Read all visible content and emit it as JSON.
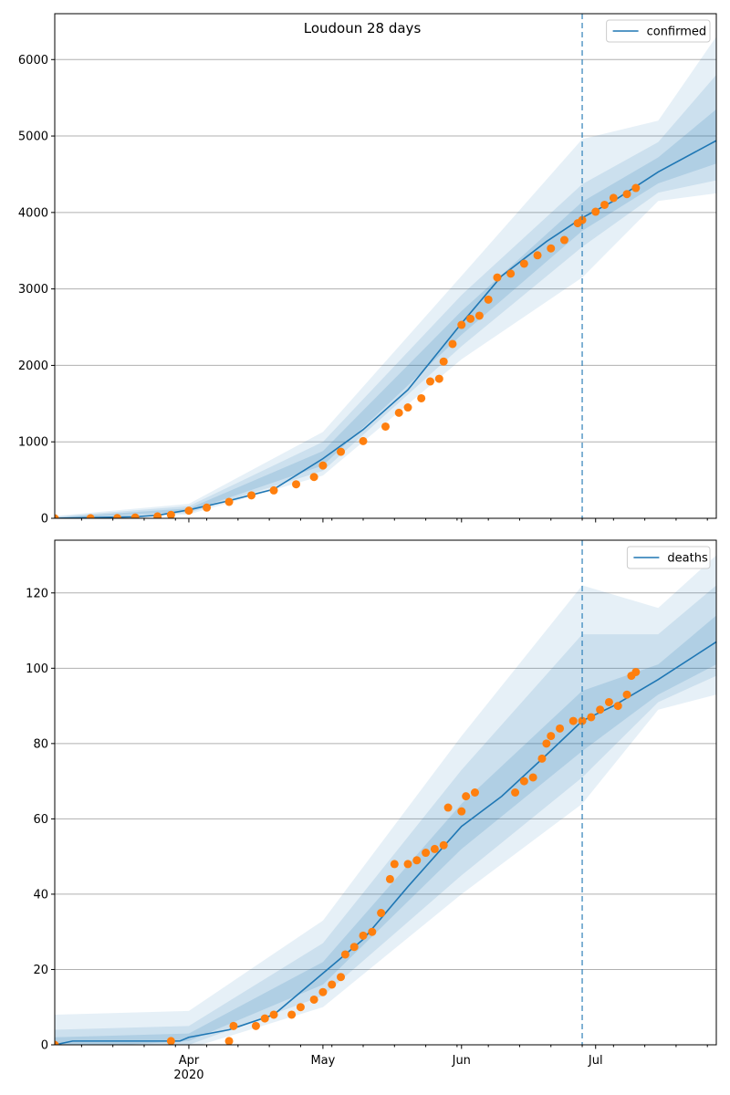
{
  "figure": {
    "title": "Loudoun 28 days",
    "colors": {
      "model_line": "#1f77b4",
      "observed_points": "#ff7f0e",
      "band": "#1f77b4",
      "grid": "#b0b0b0",
      "cutoff_line": "#1f77b4"
    }
  },
  "chart_data": [
    {
      "type": "line",
      "name": "confirmed-panel",
      "x_axis": {
        "type": "date",
        "range": [
          "2020-03-02",
          "2020-07-28"
        ],
        "tick_labels": [
          {
            "date": "2020-04-01",
            "label": "Apr",
            "sublabel": "2020"
          },
          {
            "date": "2020-05-01",
            "label": "May",
            "sublabel": ""
          },
          {
            "date": "2020-06-01",
            "label": "Jun",
            "sublabel": ""
          },
          {
            "date": "2020-07-01",
            "label": "Jul",
            "sublabel": ""
          }
        ],
        "tick_labels_visible": false
      },
      "y_axis": {
        "range": [
          0,
          6600
        ],
        "ticks": [
          0,
          1000,
          2000,
          3000,
          4000,
          5000,
          6000
        ],
        "tick_labels": [
          "0",
          "1000",
          "2000",
          "3000",
          "4000",
          "5000",
          "6000"
        ]
      },
      "grid": "horizontal",
      "legend": {
        "position": "top-right",
        "entries": [
          "confirmed"
        ]
      },
      "cutoff_date": "2020-06-28",
      "model": {
        "name": "confirmed",
        "points": [
          [
            "2020-03-02",
            0
          ],
          [
            "2020-03-20",
            20
          ],
          [
            "2020-03-25",
            40
          ],
          [
            "2020-04-01",
            110
          ],
          [
            "2020-04-10",
            230
          ],
          [
            "2020-04-20",
            380
          ],
          [
            "2020-05-01",
            780
          ],
          [
            "2020-05-10",
            1160
          ],
          [
            "2020-05-20",
            1680
          ],
          [
            "2020-06-01",
            2550
          ],
          [
            "2020-06-10",
            3170
          ],
          [
            "2020-06-20",
            3620
          ],
          [
            "2020-06-28",
            3930
          ],
          [
            "2020-07-05",
            4150
          ],
          [
            "2020-07-15",
            4530
          ],
          [
            "2020-07-28",
            4940
          ]
        ],
        "bands": [
          {
            "level": "inner",
            "points": [
              [
                "2020-03-02",
                -10,
                10
              ],
              [
                "2020-04-01",
                90,
                130
              ],
              [
                "2020-05-01",
                690,
                880
              ],
              [
                "2020-06-01",
                2400,
                2710
              ],
              [
                "2020-06-28",
                3760,
                4140
              ],
              [
                "2020-07-15",
                4380,
                4720
              ],
              [
                "2020-07-28",
                4640,
                5350
              ]
            ]
          },
          {
            "level": "middle",
            "points": [
              [
                "2020-03-02",
                -20,
                20
              ],
              [
                "2020-04-01",
                70,
                160
              ],
              [
                "2020-05-01",
                620,
                1000
              ],
              [
                "2020-06-01",
                2250,
                2920
              ],
              [
                "2020-06-28",
                3550,
                4370
              ],
              [
                "2020-07-15",
                4260,
                4920
              ],
              [
                "2020-07-28",
                4420,
                5800
              ]
            ]
          },
          {
            "level": "outer",
            "points": [
              [
                "2020-03-02",
                -30,
                30
              ],
              [
                "2020-04-01",
                50,
                190
              ],
              [
                "2020-05-01",
                560,
                1130
              ],
              [
                "2020-06-01",
                2080,
                3170
              ],
              [
                "2020-06-28",
                3150,
                4960
              ],
              [
                "2020-07-15",
                4150,
                5200
              ],
              [
                "2020-07-28",
                4250,
                6300
              ]
            ]
          }
        ]
      },
      "observed": {
        "name": "confirmed",
        "points": [
          [
            "2020-03-02",
            0
          ],
          [
            "2020-03-10",
            1
          ],
          [
            "2020-03-16",
            3
          ],
          [
            "2020-03-20",
            10
          ],
          [
            "2020-03-25",
            25
          ],
          [
            "2020-03-28",
            45
          ],
          [
            "2020-04-01",
            100
          ],
          [
            "2020-04-05",
            140
          ],
          [
            "2020-04-10",
            215
          ],
          [
            "2020-04-15",
            300
          ],
          [
            "2020-04-20",
            365
          ],
          [
            "2020-04-25",
            445
          ],
          [
            "2020-04-29",
            540
          ],
          [
            "2020-05-01",
            690
          ],
          [
            "2020-05-05",
            870
          ],
          [
            "2020-05-10",
            1010
          ],
          [
            "2020-05-15",
            1200
          ],
          [
            "2020-05-18",
            1380
          ],
          [
            "2020-05-20",
            1450
          ],
          [
            "2020-05-23",
            1570
          ],
          [
            "2020-05-25",
            1790
          ],
          [
            "2020-05-27",
            1825
          ],
          [
            "2020-05-28",
            2050
          ],
          [
            "2020-05-30",
            2280
          ],
          [
            "2020-06-01",
            2530
          ],
          [
            "2020-06-03",
            2610
          ],
          [
            "2020-06-05",
            2650
          ],
          [
            "2020-06-07",
            2860
          ],
          [
            "2020-06-09",
            3150
          ],
          [
            "2020-06-12",
            3200
          ],
          [
            "2020-06-15",
            3330
          ],
          [
            "2020-06-18",
            3440
          ],
          [
            "2020-06-21",
            3530
          ],
          [
            "2020-06-24",
            3640
          ],
          [
            "2020-06-27",
            3860
          ],
          [
            "2020-06-28",
            3900
          ],
          [
            "2020-07-01",
            4010
          ],
          [
            "2020-07-03",
            4100
          ],
          [
            "2020-07-05",
            4190
          ],
          [
            "2020-07-08",
            4240
          ],
          [
            "2020-07-10",
            4320
          ]
        ]
      }
    },
    {
      "type": "line",
      "name": "deaths-panel",
      "x_axis": {
        "type": "date",
        "range": [
          "2020-03-02",
          "2020-07-28"
        ],
        "tick_labels": [
          {
            "date": "2020-04-01",
            "label": "Apr",
            "sublabel": "2020"
          },
          {
            "date": "2020-05-01",
            "label": "May",
            "sublabel": ""
          },
          {
            "date": "2020-06-01",
            "label": "Jun",
            "sublabel": ""
          },
          {
            "date": "2020-07-01",
            "label": "Jul",
            "sublabel": ""
          }
        ],
        "tick_labels_visible": true
      },
      "y_axis": {
        "range": [
          0,
          134
        ],
        "ticks": [
          0,
          20,
          40,
          60,
          80,
          100,
          120
        ],
        "tick_labels": [
          "0",
          "20",
          "40",
          "60",
          "80",
          "100",
          "120"
        ]
      },
      "grid": "horizontal",
      "legend": {
        "position": "top-right",
        "entries": [
          "deaths"
        ]
      },
      "cutoff_date": "2020-06-28",
      "model": {
        "name": "deaths",
        "points": [
          [
            "2020-03-02",
            0
          ],
          [
            "2020-03-06",
            1
          ],
          [
            "2020-03-30",
            1
          ],
          [
            "2020-04-01",
            2
          ],
          [
            "2020-04-10",
            4
          ],
          [
            "2020-04-20",
            8
          ],
          [
            "2020-05-01",
            19
          ],
          [
            "2020-05-10",
            28
          ],
          [
            "2020-05-20",
            42
          ],
          [
            "2020-06-01",
            58
          ],
          [
            "2020-06-10",
            66
          ],
          [
            "2020-06-20",
            77
          ],
          [
            "2020-06-28",
            86
          ],
          [
            "2020-07-05",
            90
          ],
          [
            "2020-07-15",
            97
          ],
          [
            "2020-07-28",
            107
          ]
        ],
        "bands": [
          {
            "level": "inner",
            "points": [
              [
                "2020-03-02",
                -1,
                2
              ],
              [
                "2020-04-01",
                1,
                3
              ],
              [
                "2020-05-01",
                16,
                22
              ],
              [
                "2020-06-01",
                52,
                64
              ],
              [
                "2020-06-28",
                78,
                94
              ],
              [
                "2020-07-15",
                93,
                101
              ],
              [
                "2020-07-28",
                101,
                114
              ]
            ]
          },
          {
            "level": "middle",
            "points": [
              [
                "2020-03-02",
                -2,
                4
              ],
              [
                "2020-04-01",
                0,
                5
              ],
              [
                "2020-05-01",
                13,
                27
              ],
              [
                "2020-06-01",
                45,
                73
              ],
              [
                "2020-06-28",
                71,
                109
              ],
              [
                "2020-07-15",
                91,
                109
              ],
              [
                "2020-07-28",
                98,
                122
              ]
            ]
          },
          {
            "level": "outer",
            "points": [
              [
                "2020-03-02",
                -3,
                8
              ],
              [
                "2020-04-01",
                -1,
                9
              ],
              [
                "2020-05-01",
                10,
                33
              ],
              [
                "2020-06-01",
                40,
                82
              ],
              [
                "2020-06-28",
                64,
                122
              ],
              [
                "2020-07-15",
                89,
                116
              ],
              [
                "2020-07-28",
                93,
                130
              ]
            ]
          }
        ]
      },
      "observed": {
        "name": "deaths",
        "points": [
          [
            "2020-03-02",
            0
          ],
          [
            "2020-03-28",
            1
          ],
          [
            "2020-04-10",
            1
          ],
          [
            "2020-04-11",
            5
          ],
          [
            "2020-04-16",
            5
          ],
          [
            "2020-04-18",
            7
          ],
          [
            "2020-04-20",
            8
          ],
          [
            "2020-04-24",
            8
          ],
          [
            "2020-04-26",
            10
          ],
          [
            "2020-04-29",
            12
          ],
          [
            "2020-05-01",
            14
          ],
          [
            "2020-05-03",
            16
          ],
          [
            "2020-05-05",
            18
          ],
          [
            "2020-05-06",
            24
          ],
          [
            "2020-05-08",
            26
          ],
          [
            "2020-05-10",
            29
          ],
          [
            "2020-05-12",
            30
          ],
          [
            "2020-05-14",
            35
          ],
          [
            "2020-05-16",
            44
          ],
          [
            "2020-05-17",
            48
          ],
          [
            "2020-05-20",
            48
          ],
          [
            "2020-05-22",
            49
          ],
          [
            "2020-05-24",
            51
          ],
          [
            "2020-05-26",
            52
          ],
          [
            "2020-05-28",
            53
          ],
          [
            "2020-05-29",
            63
          ],
          [
            "2020-06-01",
            62
          ],
          [
            "2020-06-02",
            66
          ],
          [
            "2020-06-04",
            67
          ],
          [
            "2020-06-13",
            67
          ],
          [
            "2020-06-15",
            70
          ],
          [
            "2020-06-17",
            71
          ],
          [
            "2020-06-19",
            76
          ],
          [
            "2020-06-20",
            80
          ],
          [
            "2020-06-21",
            82
          ],
          [
            "2020-06-23",
            84
          ],
          [
            "2020-06-26",
            86
          ],
          [
            "2020-06-28",
            86
          ],
          [
            "2020-06-30",
            87
          ],
          [
            "2020-07-02",
            89
          ],
          [
            "2020-07-04",
            91
          ],
          [
            "2020-07-06",
            90
          ],
          [
            "2020-07-08",
            93
          ],
          [
            "2020-07-09",
            98
          ],
          [
            "2020-07-10",
            99
          ]
        ]
      }
    }
  ]
}
